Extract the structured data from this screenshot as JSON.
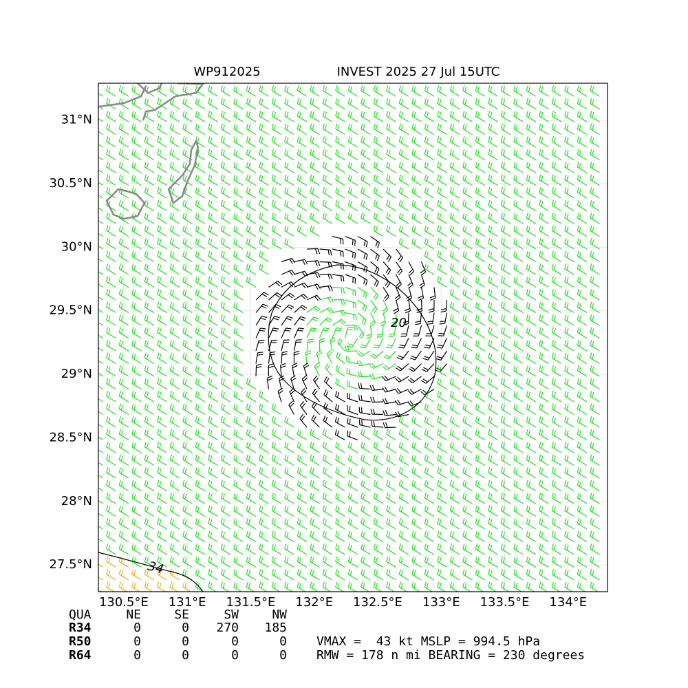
{
  "title_left": "WP912025",
  "title_right": "INVEST 2025 27 Jul 15UTC",
  "map": {
    "xlim": [
      130.3,
      134.31
    ],
    "ylim": [
      27.29,
      31.29
    ],
    "xticks": [
      {
        "value": 130.5,
        "label": "130.5°E"
      },
      {
        "value": 131,
        "label": "131°E"
      },
      {
        "value": 131.5,
        "label": "131.5°E"
      },
      {
        "value": 132,
        "label": "132°E"
      },
      {
        "value": 132.5,
        "label": "132.5°E"
      },
      {
        "value": 133,
        "label": "133°E"
      },
      {
        "value": 133.5,
        "label": "133.5°E"
      },
      {
        "value": 134,
        "label": "134°E"
      }
    ],
    "yticks": [
      {
        "value": 27.5,
        "label": "27.5°N"
      },
      {
        "value": 28,
        "label": "28°N"
      },
      {
        "value": 28.5,
        "label": "28.5°N"
      },
      {
        "value": 29,
        "label": "29°N"
      },
      {
        "value": 29.5,
        "label": "29.5°N"
      },
      {
        "value": 30,
        "label": "30°N"
      },
      {
        "value": 30.5,
        "label": "30.5°N"
      },
      {
        "value": 31,
        "label": "31°N"
      }
    ],
    "contour_labels": [
      "20",
      "34"
    ]
  },
  "table": {
    "header": [
      "QUA",
      "NE",
      "SE",
      "SW",
      "NW"
    ],
    "rows": [
      [
        "R34",
        0,
        0,
        270,
        185
      ],
      [
        "R50",
        0,
        0,
        0,
        0
      ],
      [
        "R64",
        0,
        0,
        0,
        0
      ]
    ]
  },
  "stats": [
    "VMAX =  43 kt MSLP = 994.5 hPa",
    "RMW = 178 n mi BEARING = 230 degrees"
  ]
}
